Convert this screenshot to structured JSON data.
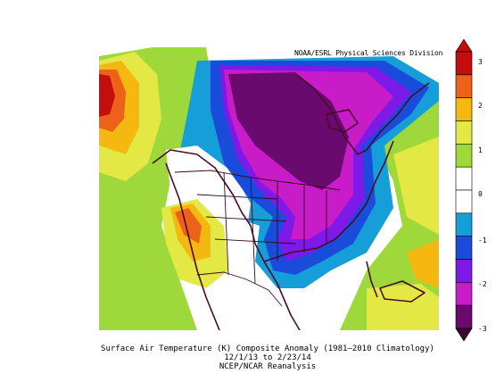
{
  "map": {
    "region": "North America",
    "credit": "NOAA/ESRL Physical Sciences Division",
    "variable": "Surface Air Temperature (K) Composite Anomaly",
    "climatology": "(1981–2010 Climatology)",
    "date_range": "12/1/13  to 2/23/14",
    "source": "NCEP/NCAR Reanalysis"
  },
  "colorbar": {
    "labels": [
      "3",
      "2",
      "1",
      "0",
      "-1",
      "-2",
      "-3"
    ],
    "colors": [
      "#c40d0d",
      "#ec6218",
      "#f5b810",
      "#e3e844",
      "#9ed83a",
      "#ffffff",
      "#ffffff",
      "#159ed8",
      "#1a4cdc",
      "#7d1ae8",
      "#c81cc8",
      "#6a0a6e"
    ]
  }
}
